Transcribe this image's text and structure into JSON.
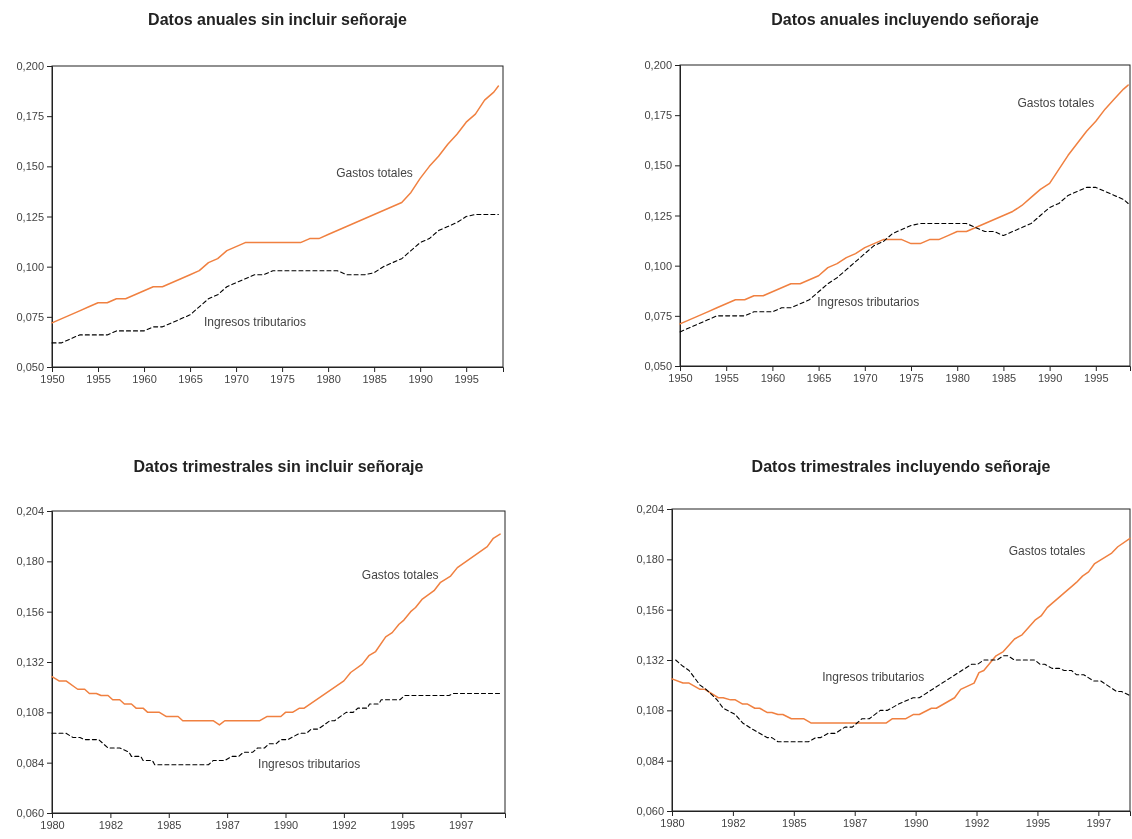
{
  "chart_data": [
    {
      "type": "line",
      "title": "Datos anuales sin incluir señoraje",
      "xlim": [
        1950,
        1999
      ],
      "xticks": [
        1950,
        1955,
        1960,
        1965,
        1970,
        1975,
        1980,
        1985,
        1990,
        1995
      ],
      "ylim": [
        0.05,
        0.2
      ],
      "yticks": [
        {
          "value": 0.05,
          "label": "0,050"
        },
        {
          "value": 0.075,
          "label": "0,075"
        },
        {
          "value": 0.1,
          "label": "0,100"
        },
        {
          "value": 0.125,
          "label": "0,125"
        },
        {
          "value": 0.15,
          "label": "0,150"
        },
        {
          "value": 0.175,
          "label": "0,175"
        },
        {
          "value": 0.2,
          "label": "0,200"
        }
      ],
      "series": [
        {
          "name": "Gastos totales",
          "color": "#f08040",
          "line_style": "solid",
          "x": [
            1950,
            1951,
            1952,
            1953,
            1954,
            1955,
            1956,
            1957,
            1958,
            1959,
            1960,
            1961,
            1962,
            1963,
            1964,
            1965,
            1966,
            1967,
            1968,
            1969,
            1970,
            1971,
            1977,
            1978,
            1979,
            1980,
            1981,
            1982,
            1983,
            1984,
            1985,
            1986,
            1987,
            1988,
            1989,
            1990,
            1991,
            1992,
            1993,
            1994,
            1995,
            1996,
            1997,
            1998,
            1998.5
          ],
          "values": [
            0.072,
            0.074,
            0.076,
            0.078,
            0.08,
            0.082,
            0.082,
            0.084,
            0.084,
            0.086,
            0.088,
            0.09,
            0.09,
            0.092,
            0.094,
            0.096,
            0.098,
            0.102,
            0.104,
            0.108,
            0.11,
            0.112,
            0.112,
            0.114,
            0.114,
            0.116,
            0.118,
            0.12,
            0.122,
            0.124,
            0.126,
            0.128,
            0.13,
            0.132,
            0.137,
            0.144,
            0.15,
            0.155,
            0.161,
            0.166,
            0.172,
            0.176,
            0.183,
            0.187,
            0.19
          ]
        },
        {
          "name": "Ingresos tributarios",
          "color": "#000000",
          "line_style": "dashed",
          "x": [
            1950,
            1951,
            1952,
            1953,
            1954,
            1955,
            1956,
            1957,
            1958,
            1959,
            1960,
            1961,
            1962,
            1963,
            1964,
            1965,
            1966,
            1967,
            1968,
            1969,
            1970,
            1971,
            1972,
            1973,
            1974,
            1981,
            1982,
            1983,
            1984,
            1985,
            1986,
            1987,
            1988,
            1989,
            1990,
            1991,
            1992,
            1993,
            1994,
            1995,
            1996,
            1997,
            1998.5
          ],
          "values": [
            0.062,
            0.062,
            0.064,
            0.066,
            0.066,
            0.066,
            0.066,
            0.068,
            0.068,
            0.068,
            0.068,
            0.07,
            0.07,
            0.072,
            0.074,
            0.076,
            0.08,
            0.084,
            0.086,
            0.09,
            0.092,
            0.094,
            0.096,
            0.096,
            0.098,
            0.098,
            0.096,
            0.096,
            0.096,
            0.097,
            0.1,
            0.102,
            0.104,
            0.108,
            0.112,
            0.114,
            0.118,
            0.12,
            0.122,
            0.125,
            0.126,
            0.126,
            0.126
          ]
        }
      ]
    },
    {
      "type": "line",
      "title": "Datos anuales incluyendo señoraje",
      "xlim": [
        1950,
        1998.7
      ],
      "xticks": [
        1950,
        1955,
        1960,
        1965,
        1970,
        1975,
        1980,
        1985,
        1990,
        1995
      ],
      "ylim": [
        0.05,
        0.2
      ],
      "yticks": [
        {
          "value": 0.05,
          "label": "0,050"
        },
        {
          "value": 0.075,
          "label": "0,075"
        },
        {
          "value": 0.1,
          "label": "0,100"
        },
        {
          "value": 0.125,
          "label": "0,125"
        },
        {
          "value": 0.15,
          "label": "0,150"
        },
        {
          "value": 0.175,
          "label": "0,175"
        },
        {
          "value": 0.2,
          "label": "0,200"
        }
      ],
      "series": [
        {
          "name": "Gastos totales",
          "color": "#f08040",
          "line_style": "solid",
          "x": [
            1950,
            1951,
            1952,
            1953,
            1954,
            1955,
            1956,
            1957,
            1958,
            1959,
            1960,
            1961,
            1962,
            1963,
            1964,
            1965,
            1966,
            1967,
            1968,
            1969,
            1970,
            1971,
            1972,
            1973,
            1974,
            1975,
            1976,
            1977,
            1978,
            1979,
            1980,
            1981,
            1982,
            1983,
            1984,
            1985,
            1986,
            1987,
            1988,
            1989,
            1990,
            1991,
            1992,
            1993,
            1994,
            1995,
            1996,
            1997,
            1998,
            1998.5
          ],
          "values": [
            0.071,
            0.073,
            0.075,
            0.077,
            0.079,
            0.081,
            0.083,
            0.083,
            0.085,
            0.085,
            0.087,
            0.089,
            0.091,
            0.091,
            0.093,
            0.095,
            0.099,
            0.101,
            0.104,
            0.106,
            0.109,
            0.111,
            0.113,
            0.113,
            0.113,
            0.111,
            0.111,
            0.113,
            0.113,
            0.115,
            0.117,
            0.117,
            0.119,
            0.121,
            0.123,
            0.125,
            0.127,
            0.13,
            0.134,
            0.138,
            0.141,
            0.148,
            0.155,
            0.161,
            0.167,
            0.172,
            0.178,
            0.183,
            0.188,
            0.19
          ]
        },
        {
          "name": "Ingresos tributarios",
          "color": "#000000",
          "line_style": "dashed",
          "x": [
            1950,
            1952,
            1953,
            1954,
            1955,
            1956,
            1957,
            1958,
            1959,
            1960,
            1961,
            1962,
            1963,
            1964,
            1965,
            1966,
            1967,
            1968,
            1969,
            1970,
            1971,
            1972,
            1973,
            1974,
            1975,
            1976,
            1981,
            1982,
            1983,
            1984,
            1985,
            1986,
            1987,
            1988,
            1989,
            1990,
            1991,
            1992,
            1993,
            1994,
            1995,
            1996,
            1997,
            1998,
            1998.5
          ],
          "values": [
            0.067,
            0.071,
            0.073,
            0.075,
            0.075,
            0.075,
            0.075,
            0.077,
            0.077,
            0.077,
            0.079,
            0.079,
            0.081,
            0.083,
            0.087,
            0.091,
            0.094,
            0.098,
            0.102,
            0.106,
            0.11,
            0.112,
            0.116,
            0.118,
            0.12,
            0.121,
            0.121,
            0.119,
            0.117,
            0.117,
            0.115,
            0.117,
            0.119,
            0.121,
            0.125,
            0.129,
            0.131,
            0.135,
            0.137,
            0.139,
            0.139,
            0.137,
            0.135,
            0.133,
            0.131
          ]
        }
      ]
    },
    {
      "type": "line",
      "title": "Datos trimestrales sin incluir señoraje",
      "xlim": [
        1980,
        1999.4
      ],
      "xticks": [
        1980,
        {
          "value": 1982.5,
          "label": "1982"
        },
        1985,
        {
          "value": 1987.5,
          "label": "1987"
        },
        1990,
        {
          "value": 1992.5,
          "label": "1992"
        },
        1995,
        {
          "value": 1997.5,
          "label": "1997"
        }
      ],
      "ylim": [
        0.06,
        0.204
      ],
      "yticks": [
        {
          "value": 0.06,
          "label": "0,060"
        },
        {
          "value": 0.084,
          "label": "0,084"
        },
        {
          "value": 0.108,
          "label": "0,108"
        },
        {
          "value": 0.132,
          "label": "0,132"
        },
        {
          "value": 0.156,
          "label": "0,156"
        },
        {
          "value": 0.18,
          "label": "0,180"
        },
        {
          "value": 0.204,
          "label": "0,204"
        }
      ],
      "series": [
        {
          "name": "Gastos totales",
          "color": "#f08040",
          "line_style": "solid",
          "x": [
            1980,
            1980.3,
            1980.6,
            1981.1,
            1981.4,
            1981.6,
            1981.9,
            1982.1,
            1982.4,
            1982.6,
            1982.9,
            1983.1,
            1983.4,
            1983.6,
            1983.9,
            1984.1,
            1984.6,
            1984.9,
            1985.4,
            1985.6,
            1986.9,
            1987.17,
            1987.4,
            1988.9,
            1989.2,
            1989.8,
            1990.0,
            1990.3,
            1990.6,
            1990.8,
            1992.5,
            1992.79,
            1993.29,
            1993.57,
            1993.86,
            1994.29,
            1994.57,
            1994.86,
            1995.07,
            1995.36,
            1995.57,
            1995.86,
            1996.36,
            1996.64,
            1997.07,
            1997.36,
            1998.64,
            1998.9,
            1999.19
          ],
          "values": [
            0.125,
            0.123,
            0.123,
            0.119,
            0.119,
            0.117,
            0.117,
            0.116,
            0.116,
            0.114,
            0.114,
            0.112,
            0.112,
            0.11,
            0.11,
            0.108,
            0.108,
            0.106,
            0.106,
            0.104,
            0.104,
            0.102,
            0.104,
            0.104,
            0.106,
            0.106,
            0.108,
            0.108,
            0.11,
            0.11,
            0.123,
            0.127,
            0.131,
            0.135,
            0.137,
            0.144,
            0.146,
            0.15,
            0.152,
            0.156,
            0.158,
            0.162,
            0.166,
            0.17,
            0.173,
            0.177,
            0.187,
            0.191,
            0.193
          ]
        },
        {
          "name": "Ingresos tributarios",
          "color": "#000000",
          "line_style": "dashed",
          "x": [
            1980,
            1980.6,
            1980.9,
            1981.2,
            1981.4,
            1982,
            1982.4,
            1982.9,
            1983.3,
            1983.4,
            1983.8,
            1983.9,
            1984.3,
            1984.4,
            1986.7,
            1986.9,
            1987.4,
            1987.7,
            1988,
            1988.2,
            1988.6,
            1988.8,
            1989.1,
            1989.3,
            1989.6,
            1989.8,
            1990.1,
            1990.6,
            1990.9,
            1991.1,
            1991.4,
            1991.9,
            1992.1,
            1992.6,
            1992.9,
            1993.1,
            1993.5,
            1993.6,
            1994,
            1994.1,
            1994.9,
            1995.1,
            1997,
            1997.2,
            1999.19
          ],
          "values": [
            0.098,
            0.098,
            0.096,
            0.096,
            0.095,
            0.095,
            0.091,
            0.091,
            0.089,
            0.087,
            0.087,
            0.085,
            0.085,
            0.083,
            0.083,
            0.085,
            0.085,
            0.087,
            0.087,
            0.089,
            0.089,
            0.091,
            0.091,
            0.093,
            0.093,
            0.095,
            0.095,
            0.098,
            0.098,
            0.1,
            0.1,
            0.104,
            0.104,
            0.108,
            0.108,
            0.11,
            0.11,
            0.112,
            0.112,
            0.114,
            0.114,
            0.116,
            0.116,
            0.117,
            0.117
          ]
        }
      ]
    },
    {
      "type": "line",
      "title": "Datos trimestrales incluyendo señoraje",
      "xlim": [
        1980,
        1998.8
      ],
      "xticks": [
        1980,
        {
          "value": 1982.5,
          "label": "1982"
        },
        1985,
        {
          "value": 1987.5,
          "label": "1987"
        },
        1990,
        {
          "value": 1992.5,
          "label": "1992"
        },
        1995,
        {
          "value": 1997.5,
          "label": "1997"
        }
      ],
      "ylim": [
        0.06,
        0.204
      ],
      "yticks": [
        {
          "value": 0.06,
          "label": "0,060"
        },
        {
          "value": 0.084,
          "label": "0,084"
        },
        {
          "value": 0.108,
          "label": "0,108"
        },
        {
          "value": 0.132,
          "label": "0,132"
        },
        {
          "value": 0.156,
          "label": "0,156"
        },
        {
          "value": 0.18,
          "label": "0,180"
        },
        {
          "value": 0.204,
          "label": "0,204"
        }
      ],
      "series": [
        {
          "name": "Gastos totales",
          "color": "#f08040",
          "line_style": "solid",
          "x": [
            1980,
            1980.45,
            1980.7,
            1981.15,
            1981.35,
            1981.9,
            1982.1,
            1982.4,
            1982.6,
            1982.9,
            1983.1,
            1983.4,
            1983.6,
            1983.9,
            1984.1,
            1984.35,
            1984.55,
            1984.9,
            1985.4,
            1985.7,
            1988.8,
            1989.05,
            1989.6,
            1989.9,
            1990.15,
            1990.65,
            1990.85,
            1991.6,
            1991.85,
            1992.4,
            1992.6,
            1992.8,
            1993.3,
            1993.6,
            1994.06,
            1994.37,
            1994.9,
            1995.15,
            1995.4,
            1995.6,
            1995.9,
            1996.1,
            1996.4,
            1996.6,
            1996.85,
            1997.1,
            1997.35,
            1998.05,
            1998.3,
            1998.8
          ],
          "values": [
            0.123,
            0.121,
            0.121,
            0.118,
            0.118,
            0.114,
            0.114,
            0.113,
            0.113,
            0.111,
            0.111,
            0.109,
            0.109,
            0.107,
            0.107,
            0.106,
            0.106,
            0.104,
            0.104,
            0.102,
            0.102,
            0.104,
            0.104,
            0.106,
            0.106,
            0.109,
            0.109,
            0.114,
            0.118,
            0.121,
            0.126,
            0.127,
            0.134,
            0.136,
            0.142,
            0.144,
            0.151,
            0.153,
            0.157,
            0.159,
            0.162,
            0.164,
            0.167,
            0.169,
            0.172,
            0.174,
            0.178,
            0.183,
            0.186,
            0.19
          ]
        },
        {
          "name": "Ingresos tributarios",
          "color": "#000000",
          "line_style": "dashed",
          "x": [
            1980.15,
            1980.45,
            1980.7,
            1981.15,
            1981.4,
            1981.85,
            1982.1,
            1982.6,
            1982.9,
            1983.3,
            1983.9,
            1984.1,
            1984.35,
            1985.6,
            1985.9,
            1986.1,
            1986.4,
            1986.7,
            1987.1,
            1987.4,
            1987.8,
            1988.1,
            1988.55,
            1988.85,
            1989.3,
            1989.9,
            1990.15,
            1992.3,
            1992.55,
            1992.8,
            1993.35,
            1993.6,
            1993.8,
            1994.05,
            1994.9,
            1995.1,
            1995.3,
            1995.6,
            1995.9,
            1996.1,
            1996.4,
            1996.6,
            1996.9,
            1997.3,
            1997.6,
            1998.25,
            1998.45,
            1998.8
          ],
          "values": [
            0.132,
            0.129,
            0.127,
            0.12,
            0.118,
            0.113,
            0.109,
            0.106,
            0.102,
            0.099,
            0.095,
            0.095,
            0.093,
            0.093,
            0.095,
            0.095,
            0.097,
            0.097,
            0.1,
            0.1,
            0.104,
            0.104,
            0.108,
            0.108,
            0.111,
            0.114,
            0.114,
            0.13,
            0.13,
            0.132,
            0.132,
            0.134,
            0.134,
            0.132,
            0.132,
            0.13,
            0.13,
            0.128,
            0.128,
            0.127,
            0.127,
            0.125,
            0.125,
            0.122,
            0.122,
            0.117,
            0.117,
            0.115
          ]
        }
      ]
    }
  ]
}
